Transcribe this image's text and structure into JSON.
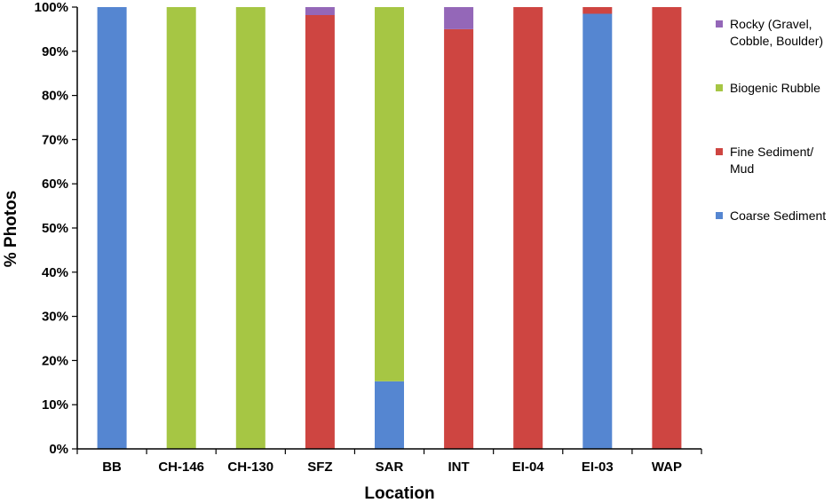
{
  "chart_data": {
    "type": "stacked-bar-100",
    "xlabel": "Location",
    "ylabel": "% Photos",
    "ylim": [
      0,
      100
    ],
    "yticks": [
      "0%",
      "10%",
      "20%",
      "30%",
      "40%",
      "50%",
      "60%",
      "70%",
      "80%",
      "90%",
      "100%"
    ],
    "categories": [
      "BB",
      "CH-146",
      "CH-130",
      "SFZ",
      "SAR",
      "INT",
      "EI-04",
      "EI-03",
      "WAP"
    ],
    "grid": false,
    "legend_position": "right",
    "series": [
      {
        "name": "Coarse Sediment",
        "color": "#5586D1",
        "values": [
          100,
          0,
          0,
          0,
          15.3,
          0,
          0,
          98.5,
          0
        ]
      },
      {
        "name": "Fine Sediment/ Mud",
        "color": "#CE4541",
        "values": [
          0,
          0,
          0,
          98.2,
          0,
          95,
          100,
          1.5,
          100
        ]
      },
      {
        "name": "Biogenic Rubble",
        "color": "#A6C644",
        "values": [
          0,
          100,
          100,
          0,
          84.7,
          0,
          0,
          0,
          0
        ]
      },
      {
        "name": "Rocky (Gravel, Cobble, Boulder)",
        "color": "#9467B8",
        "values": [
          0,
          0,
          0,
          1.8,
          0,
          5,
          0,
          0,
          0
        ]
      }
    ],
    "legend": [
      {
        "label": "Rocky (Gravel, Cobble, Boulder)",
        "color": "#9467B8"
      },
      {
        "label": "Biogenic Rubble",
        "color": "#A6C644"
      },
      {
        "label": "Fine Sediment/ Mud",
        "color": "#CE4541"
      },
      {
        "label": "Coarse Sediment",
        "color": "#5586D1"
      }
    ]
  }
}
